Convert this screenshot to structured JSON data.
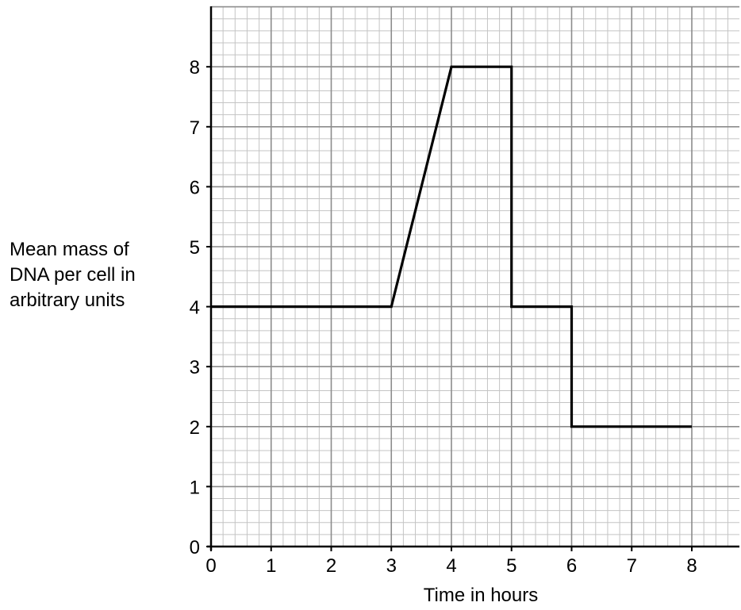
{
  "chart_data": {
    "type": "line",
    "title": "",
    "xlabel": "Time in hours",
    "ylabel_lines": [
      "Mean mass of",
      "DNA per cell in",
      "arbitrary units"
    ],
    "x_ticks": [
      0,
      1,
      2,
      3,
      4,
      5,
      6,
      7,
      8
    ],
    "y_ticks": [
      0,
      1,
      2,
      3,
      4,
      5,
      6,
      7,
      8
    ],
    "xlim": [
      0,
      8.9
    ],
    "ylim": [
      0,
      9.0
    ],
    "grid": true,
    "minor_grid_per_unit": 5,
    "series": [
      {
        "x": [
          0,
          3,
          4,
          5,
          5,
          6,
          6,
          8
        ],
        "y": [
          4,
          4,
          8,
          8,
          4,
          4,
          2,
          2
        ]
      }
    ],
    "colors": {
      "line": "#000000",
      "major_grid": "#8c8c8c",
      "minor_grid": "#c4c4c4",
      "axis": "#000000"
    }
  }
}
